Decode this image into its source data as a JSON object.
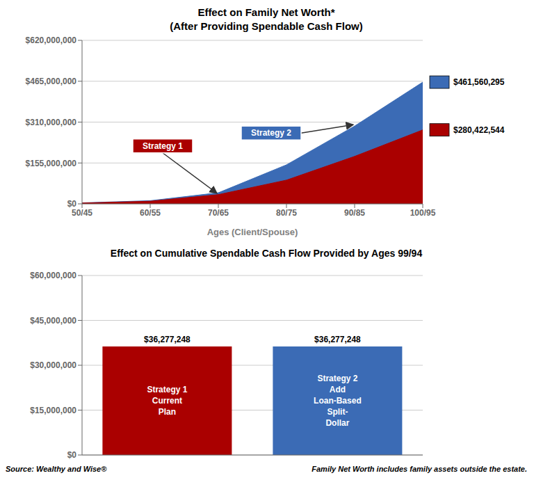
{
  "chart_data": [
    {
      "type": "area",
      "title": "Effect on Family Net Worth*",
      "subtitle": "(After Providing Spendable Cash Flow)",
      "xlabel": "Ages (Client/Spouse)",
      "x": [
        50,
        60,
        70,
        80,
        90,
        100
      ],
      "xlim": [
        50,
        100
      ],
      "xticks": [
        {
          "value": 50,
          "label": "50/45"
        },
        {
          "value": 60,
          "label": "60/55"
        },
        {
          "value": 70,
          "label": "70/65"
        },
        {
          "value": 80,
          "label": "80/75"
        },
        {
          "value": 90,
          "label": "90/85"
        },
        {
          "value": 100,
          "label": "100/95"
        }
      ],
      "ylim": [
        0,
        620000000
      ],
      "yticks": [
        {
          "value": 0,
          "label": "$0"
        },
        {
          "value": 155000000,
          "label": "$155,000,000"
        },
        {
          "value": 310000000,
          "label": "$310,000,000"
        },
        {
          "value": 465000000,
          "label": "$465,000,000"
        },
        {
          "value": 620000000,
          "label": "$620,000,000"
        }
      ],
      "grid": true,
      "series": [
        {
          "name": "Strategy 1",
          "color": "#AA0000",
          "values": [
            3000000,
            10000000,
            35000000,
            90000000,
            180000000,
            280422544
          ],
          "value_labels": [
            null,
            null,
            null,
            null,
            null,
            "$280,422,544"
          ]
        },
        {
          "name": "Strategy 2",
          "color": "#3B6BB5",
          "values": [
            3800000,
            12000000,
            42000000,
            148000000,
            295000000,
            461560295
          ],
          "value_labels": [
            null,
            null,
            null,
            null,
            null,
            "$461,560,295"
          ]
        }
      ]
    },
    {
      "type": "bar",
      "title": "Effect on Cumulative Spendable Cash Flow Provided by Ages 99/94",
      "categories": [
        "Strategy 1\nCurrent\nPlan",
        "Strategy 2\nAdd\nLoan-Based\nSplit-\nDollar"
      ],
      "values": [
        36277248,
        36277248
      ],
      "value_labels": [
        "$36,277,248",
        "$36,277,248"
      ],
      "data_labels": true,
      "colors": [
        "#AA0000",
        "#3B6BB5"
      ],
      "ylim": [
        0,
        60000000
      ],
      "yticks": [
        {
          "value": 0,
          "label": "$0"
        },
        {
          "value": 15000000,
          "label": "$15,000,000"
        },
        {
          "value": 30000000,
          "label": "$30,000,000"
        },
        {
          "value": 45000000,
          "label": "$45,000,000"
        },
        {
          "value": 60000000,
          "label": "$60,000,000"
        }
      ],
      "grid": true,
      "tick_labels": "y",
      "annotations": [
        "Source: Wealthy and Wise®",
        "Family Net Worth includes family assets outside the estate."
      ]
    }
  ]
}
